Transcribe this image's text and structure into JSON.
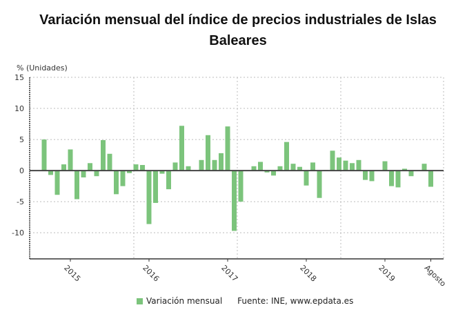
{
  "chart_data": {
    "type": "bar",
    "title_line1": "Variación mensual del índice de precios industriales de Islas",
    "title_line2": "Baleares",
    "ylabel": "% (Unidades)",
    "xlabel": "",
    "ylim": [
      -14.2,
      15
    ],
    "yticks": [
      15,
      10,
      5,
      0,
      -5,
      -10
    ],
    "grid": true,
    "bar_color": "#7cc47c",
    "categories": [
      "2014-09",
      "2014-10",
      "2014-11",
      "2014-12",
      "2015-01",
      "2015-02",
      "2015-03",
      "2015-04",
      "2015-05",
      "2015-06",
      "2015-07",
      "2015-08",
      "2015-09",
      "2015-10",
      "2015-11",
      "2015-12",
      "2016-01",
      "2016-02",
      "2016-03",
      "2016-04",
      "2016-05",
      "2016-06",
      "2016-07",
      "2016-08",
      "2016-09",
      "2016-10",
      "2016-11",
      "2016-12",
      "2017-01",
      "2017-02",
      "2017-03",
      "2017-04",
      "2017-05",
      "2017-06",
      "2017-07",
      "2017-08",
      "2017-09",
      "2017-10",
      "2017-11",
      "2017-12",
      "2018-01",
      "2018-02",
      "2018-03",
      "2018-04",
      "2018-05",
      "2018-06",
      "2018-07",
      "2018-08",
      "2018-09",
      "2018-10",
      "2018-11",
      "2018-12",
      "2019-01",
      "2019-02",
      "2019-03",
      "2019-04",
      "2019-05",
      "2019-06",
      "2019-07",
      "2019-08"
    ],
    "series": [
      {
        "name": "Variación mensual",
        "values": [
          5.0,
          -0.7,
          -3.9,
          1.0,
          3.4,
          -4.6,
          -1.1,
          1.2,
          -0.9,
          4.9,
          2.7,
          -3.8,
          -2.5,
          -0.4,
          1.0,
          0.9,
          -8.6,
          -5.2,
          -0.5,
          -3.0,
          1.3,
          7.2,
          0.7,
          0,
          1.7,
          5.7,
          1.7,
          2.8,
          7.1,
          -9.7,
          -5.0,
          -0.1,
          0.7,
          1.4,
          -0.3,
          -0.8,
          0.7,
          4.6,
          1.1,
          0.6,
          -2.4,
          1.3,
          -4.4,
          0.1,
          3.2,
          2.1,
          1.6,
          1.2,
          1.7,
          -1.5,
          -1.7,
          0,
          1.5,
          -2.5,
          -2.7,
          0.3,
          -0.9,
          0,
          1.1,
          -2.6
        ]
      }
    ],
    "xtick_labels": [
      {
        "label": "2015",
        "category": "2015-01"
      },
      {
        "label": "2016",
        "category": "2016-01"
      },
      {
        "label": "2017",
        "category": "2017-01"
      },
      {
        "label": "2018",
        "category": "2018-01"
      },
      {
        "label": "2019",
        "category": "2019-01"
      },
      {
        "label": "Agosto",
        "category": "2019-08"
      }
    ],
    "legend": "bottom",
    "source": "Fuente: INE, www.epdata.es"
  }
}
